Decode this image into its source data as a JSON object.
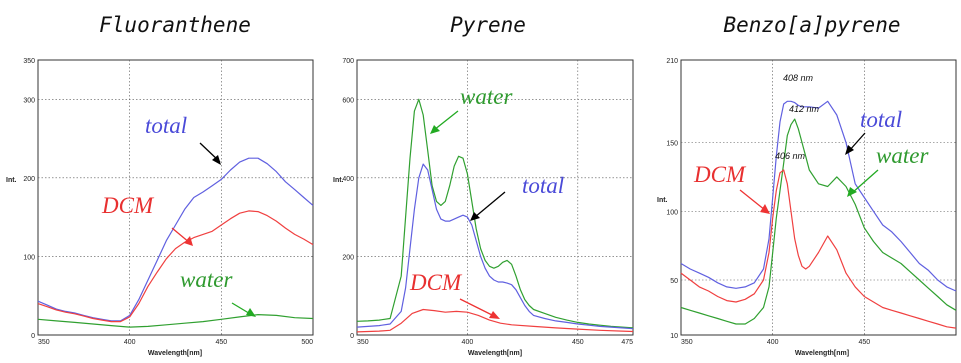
{
  "chart_data": [
    {
      "type": "line",
      "title": "Fluoranthene",
      "xlabel": "Wavelength[nm]",
      "ylabel": "Int.",
      "xlim": [
        350,
        500
      ],
      "ylim": [
        0,
        350
      ],
      "xticks": [
        350,
        400,
        450,
        500
      ],
      "yticks": [
        0,
        100,
        200,
        300,
        350
      ],
      "grid": true,
      "series": [
        {
          "name": "total",
          "color": "#6060e0",
          "x": [
            350,
            355,
            360,
            365,
            370,
            375,
            380,
            385,
            390,
            395,
            400,
            405,
            410,
            415,
            420,
            425,
            430,
            435,
            440,
            445,
            450,
            455,
            460,
            465,
            470,
            475,
            480,
            485,
            490,
            495,
            500
          ],
          "y": [
            43,
            38,
            33,
            30,
            28,
            25,
            22,
            20,
            18,
            18,
            25,
            45,
            70,
            95,
            120,
            140,
            160,
            175,
            182,
            190,
            198,
            210,
            220,
            225,
            225,
            218,
            208,
            195,
            185,
            175,
            165
          ]
        },
        {
          "name": "DCM",
          "color": "#f04040",
          "x": [
            350,
            355,
            360,
            365,
            370,
            375,
            380,
            385,
            390,
            395,
            400,
            405,
            410,
            415,
            420,
            425,
            430,
            435,
            440,
            445,
            450,
            455,
            460,
            465,
            470,
            475,
            480,
            485,
            490,
            495,
            500
          ],
          "y": [
            40,
            36,
            32,
            29,
            27,
            24,
            21,
            19,
            17,
            17,
            23,
            40,
            62,
            80,
            97,
            110,
            118,
            124,
            128,
            132,
            140,
            148,
            155,
            158,
            157,
            152,
            145,
            136,
            128,
            122,
            115
          ]
        },
        {
          "name": "water",
          "color": "#30a030",
          "x": [
            350,
            360,
            370,
            380,
            390,
            400,
            410,
            420,
            430,
            440,
            450,
            460,
            470,
            480,
            490,
            500
          ],
          "y": [
            20,
            18,
            16,
            14,
            12,
            10,
            11,
            13,
            15,
            17,
            20,
            23,
            26,
            25,
            22,
            21
          ]
        }
      ],
      "annotations": [
        "total",
        "DCM",
        "water"
      ]
    },
    {
      "type": "line",
      "title": "Pyrene",
      "xlabel": "Wavelength[nm]",
      "ylabel": "Int.",
      "xlim": [
        350,
        475
      ],
      "ylim": [
        0,
        700
      ],
      "xticks": [
        350,
        400,
        450,
        475
      ],
      "yticks": [
        0,
        200,
        400,
        600,
        700
      ],
      "grid": true,
      "series": [
        {
          "name": "water",
          "color": "#30a030",
          "x": [
            350,
            355,
            360,
            365,
            370,
            372,
            374,
            376,
            378,
            380,
            382,
            384,
            386,
            388,
            390,
            392,
            394,
            396,
            398,
            400,
            402,
            404,
            406,
            408,
            410,
            412,
            414,
            416,
            418,
            420,
            422,
            424,
            426,
            428,
            430,
            435,
            440,
            445,
            450,
            455,
            460,
            465,
            470,
            475
          ],
          "y": [
            35,
            36,
            38,
            42,
            150,
            300,
            450,
            570,
            600,
            560,
            470,
            380,
            340,
            330,
            340,
            380,
            430,
            455,
            450,
            410,
            340,
            270,
            220,
            190,
            175,
            170,
            175,
            185,
            190,
            180,
            150,
            115,
            90,
            75,
            65,
            55,
            45,
            38,
            32,
            28,
            25,
            22,
            20,
            18
          ]
        },
        {
          "name": "total",
          "color": "#6060e0",
          "x": [
            350,
            355,
            360,
            365,
            370,
            372,
            374,
            376,
            378,
            380,
            382,
            384,
            386,
            388,
            390,
            392,
            394,
            396,
            398,
            400,
            402,
            404,
            406,
            408,
            410,
            412,
            414,
            416,
            418,
            420,
            422,
            424,
            426,
            428,
            430,
            435,
            440,
            445,
            450,
            455,
            460,
            465,
            470,
            475
          ],
          "y": [
            20,
            22,
            24,
            28,
            60,
            120,
            220,
            320,
            400,
            435,
            420,
            370,
            320,
            295,
            290,
            290,
            295,
            300,
            305,
            300,
            280,
            240,
            200,
            170,
            150,
            140,
            135,
            135,
            132,
            128,
            115,
            95,
            75,
            60,
            50,
            42,
            36,
            32,
            28,
            25,
            22,
            20,
            18,
            16
          ]
        },
        {
          "name": "DCM",
          "color": "#f04040",
          "x": [
            350,
            355,
            360,
            365,
            370,
            375,
            380,
            385,
            390,
            395,
            400,
            405,
            410,
            415,
            420,
            430,
            440,
            450,
            460,
            470,
            475
          ],
          "y": [
            8,
            9,
            10,
            12,
            30,
            55,
            65,
            62,
            58,
            60,
            58,
            50,
            38,
            30,
            26,
            22,
            18,
            15,
            12,
            10,
            9
          ]
        }
      ],
      "annotations": [
        "water",
        "total",
        "DCM"
      ]
    },
    {
      "type": "line",
      "title": "Benzo[a]pyrene",
      "xlabel": "Wavelength[nm]",
      "ylabel": "Int.",
      "xlim": [
        350,
        500
      ],
      "ylim": [
        10,
        210
      ],
      "xticks": [
        350,
        400,
        450
      ],
      "yticks": [
        10,
        50,
        100,
        150,
        210
      ],
      "grid": true,
      "series": [
        {
          "name": "total",
          "color": "#6060e0",
          "x": [
            350,
            355,
            360,
            365,
            370,
            375,
            380,
            385,
            390,
            395,
            398,
            400,
            402,
            404,
            406,
            408,
            410,
            412,
            414,
            416,
            418,
            420,
            425,
            430,
            435,
            440,
            445,
            450,
            455,
            460,
            465,
            470,
            475,
            480,
            485,
            490,
            495,
            500
          ],
          "y": [
            62,
            58,
            55,
            52,
            48,
            45,
            44,
            45,
            48,
            58,
            80,
            110,
            140,
            165,
            178,
            180,
            180,
            179,
            177,
            176,
            176,
            176,
            175,
            180,
            170,
            150,
            120,
            110,
            100,
            90,
            85,
            78,
            70,
            62,
            57,
            50,
            45,
            42
          ]
        },
        {
          "name": "water",
          "color": "#30a030",
          "x": [
            350,
            355,
            360,
            365,
            370,
            375,
            380,
            385,
            390,
            395,
            398,
            400,
            402,
            404,
            406,
            408,
            410,
            412,
            414,
            416,
            418,
            420,
            425,
            430,
            435,
            440,
            445,
            450,
            455,
            460,
            465,
            470,
            475,
            480,
            485,
            490,
            495,
            500
          ],
          "y": [
            30,
            28,
            26,
            24,
            22,
            20,
            18,
            18,
            22,
            30,
            45,
            70,
            95,
            115,
            135,
            155,
            163,
            167,
            160,
            150,
            140,
            130,
            120,
            118,
            125,
            118,
            105,
            88,
            78,
            70,
            66,
            62,
            56,
            50,
            44,
            38,
            32,
            28
          ]
        },
        {
          "name": "DCM",
          "color": "#f04040",
          "x": [
            350,
            355,
            360,
            365,
            370,
            375,
            380,
            385,
            390,
            395,
            398,
            400,
            402,
            404,
            406,
            408,
            410,
            412,
            414,
            416,
            418,
            420,
            425,
            430,
            435,
            440,
            445,
            450,
            455,
            460,
            465,
            470,
            475,
            480,
            485,
            490,
            495,
            500
          ],
          "y": [
            55,
            50,
            45,
            42,
            38,
            35,
            34,
            36,
            40,
            50,
            70,
            95,
            115,
            128,
            130,
            120,
            100,
            80,
            68,
            60,
            58,
            60,
            70,
            82,
            72,
            55,
            45,
            38,
            34,
            30,
            28,
            26,
            24,
            22,
            20,
            18,
            16,
            15
          ]
        }
      ],
      "annotations": [
        "total",
        "water",
        "DCM"
      ],
      "peak_labels": [
        "408 nm",
        "412 nm",
        "406 nm"
      ]
    }
  ]
}
